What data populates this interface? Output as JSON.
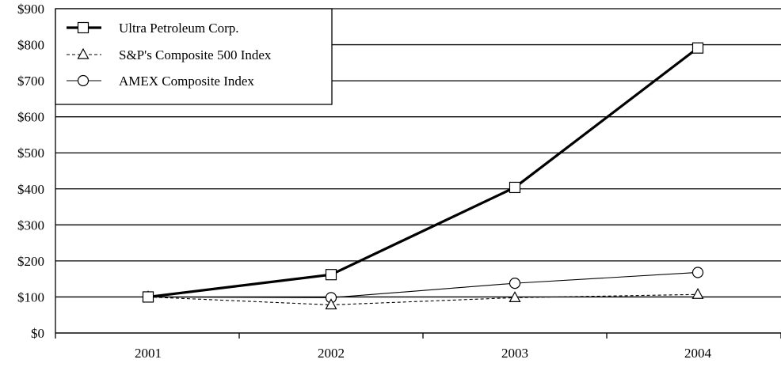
{
  "chart_data": {
    "type": "line",
    "categories": [
      "2001",
      "2002",
      "2003",
      "2004"
    ],
    "ylim": [
      0,
      900
    ],
    "yticks": [
      0,
      100,
      200,
      300,
      400,
      500,
      600,
      700,
      800,
      900
    ],
    "ytick_labels": [
      "$0",
      "$100",
      "$200",
      "$300",
      "$400",
      "$500",
      "$600",
      "$700",
      "$800",
      "$900"
    ],
    "grid": "horizontal",
    "legend_position": "top-left",
    "series": [
      {
        "name": "Ultra Petroleum Corp.",
        "values": [
          100,
          162,
          404,
          791
        ],
        "marker": "square",
        "line": "solid-thick"
      },
      {
        "name": "S&P's Composite 500 Index",
        "values": [
          100,
          78,
          98,
          107
        ],
        "marker": "triangle",
        "line": "dashed"
      },
      {
        "name": "AMEX Composite Index",
        "values": [
          100,
          98,
          138,
          168
        ],
        "marker": "circle",
        "line": "solid-thin"
      }
    ]
  }
}
